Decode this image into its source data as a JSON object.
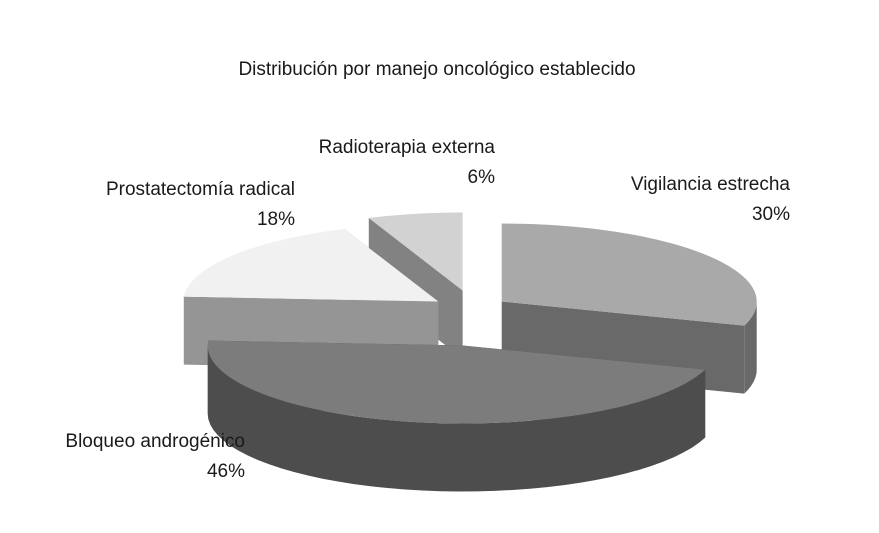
{
  "chart_data": {
    "type": "pie3d",
    "title": "Distribución por manejo oncológico establecido",
    "categories": [
      "Vigilancia estrecha",
      "Bloqueo androgénico",
      "Prostatectomía radical",
      "Radioterapia externa"
    ],
    "values": [
      30,
      46,
      18,
      6
    ],
    "value_labels": [
      "30%",
      "46%",
      "18%",
      "6%"
    ],
    "colors": [
      "#a9a9a9",
      "#7c7c7c",
      "#f1f1f1",
      "#d2d2d2"
    ]
  }
}
